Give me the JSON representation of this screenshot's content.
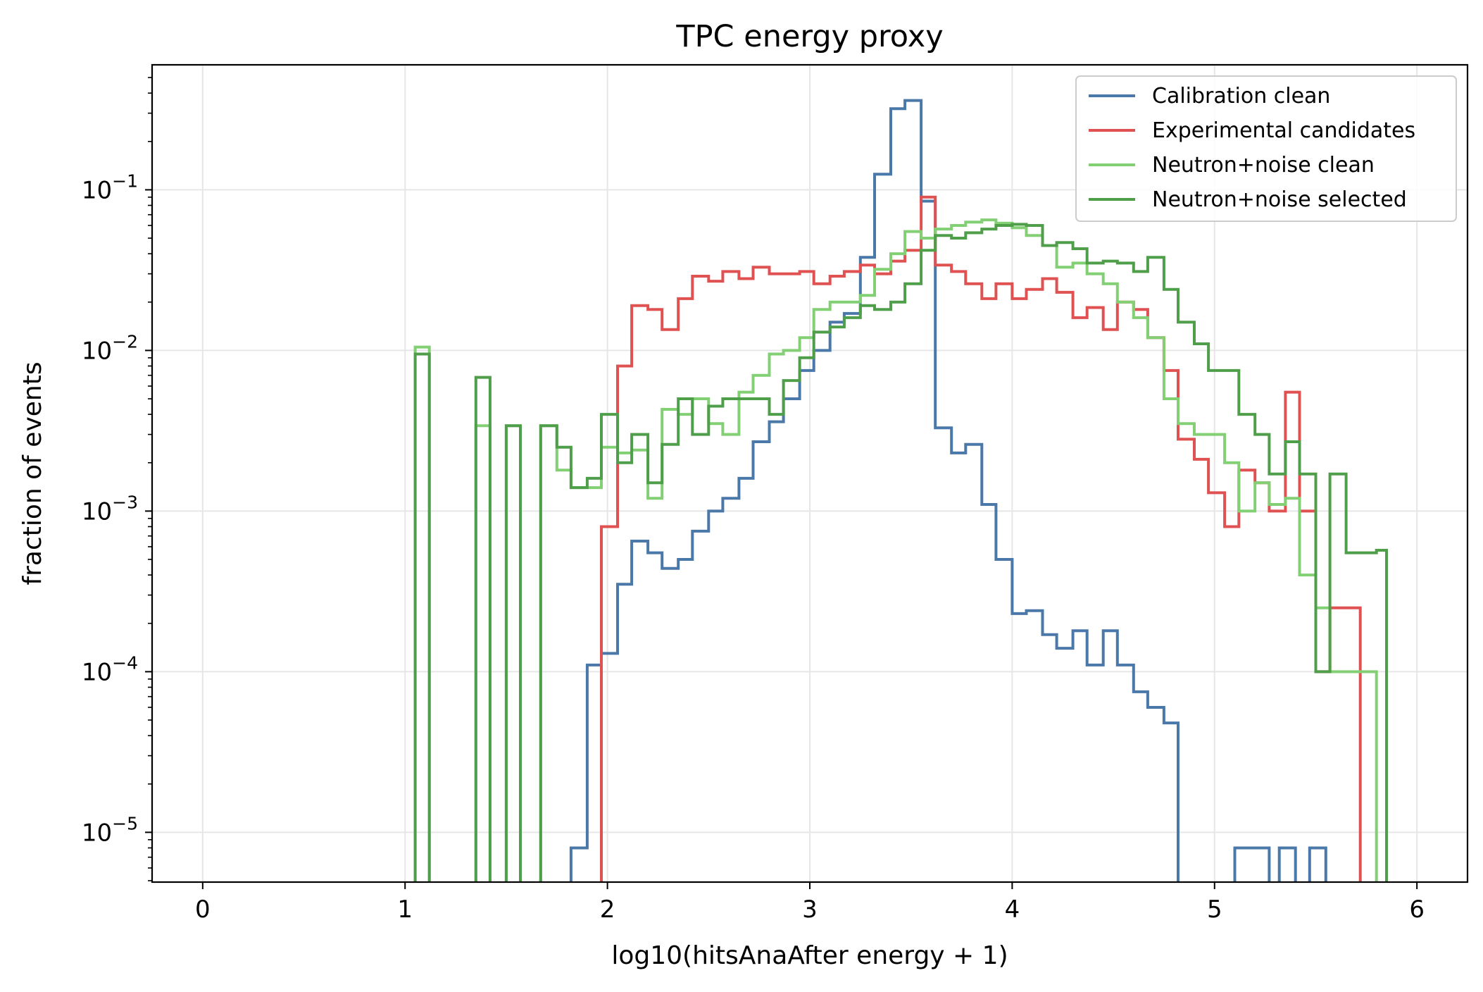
{
  "chart_data": {
    "type": "histogram-step",
    "title": "TPC energy proxy",
    "xlabel": "log10(hitsAnaAfter energy + 1)",
    "ylabel": "fraction of events",
    "x_scale": "linear",
    "y_scale": "log",
    "xlim": [
      -0.25,
      6.25
    ],
    "ylim": [
      4.9e-06,
      0.6
    ],
    "x_ticks": [
      0,
      1,
      2,
      3,
      4,
      5,
      6
    ],
    "y_ticks": [
      1e-05,
      0.0001,
      0.001,
      0.01,
      0.1
    ],
    "grid": true,
    "legend_position": "top-right",
    "bin_edges": [
      1.05,
      1.35,
      1.85,
      1.95,
      2.05,
      2.15,
      2.25,
      2.35,
      2.45,
      2.55,
      2.65,
      2.75,
      2.85,
      2.95,
      3.05,
      3.15,
      3.25,
      3.35,
      3.45,
      3.55,
      3.65,
      3.75,
      3.85,
      3.95,
      4.05,
      4.15,
      4.25,
      4.35,
      4.45,
      4.55,
      4.65,
      4.75,
      4.85,
      4.95,
      5.05,
      5.15,
      5.25,
      5.35,
      5.45,
      5.55,
      5.65,
      5.75,
      5.85
    ],
    "series": [
      {
        "name": "Calibration clean",
        "color": "#4a78a8",
        "points": [
          [
            1.82,
            8e-06
          ],
          [
            1.9,
            0.00011
          ],
          [
            1.97,
            0.00013
          ],
          [
            2.05,
            0.00035
          ],
          [
            2.12,
            0.00065
          ],
          [
            2.2,
            0.00055
          ],
          [
            2.27,
            0.00044
          ],
          [
            2.35,
            0.0005
          ],
          [
            2.42,
            0.00075
          ],
          [
            2.5,
            0.001
          ],
          [
            2.57,
            0.0012
          ],
          [
            2.65,
            0.0016
          ],
          [
            2.72,
            0.0027
          ],
          [
            2.8,
            0.0036
          ],
          [
            2.87,
            0.005
          ],
          [
            2.95,
            0.0075
          ],
          [
            3.02,
            0.01
          ],
          [
            3.1,
            0.015
          ],
          [
            3.17,
            0.017
          ],
          [
            3.25,
            0.038
          ],
          [
            3.32,
            0.125
          ],
          [
            3.4,
            0.32
          ],
          [
            3.47,
            0.36
          ],
          [
            3.55,
            0.085
          ],
          [
            3.62,
            0.0033
          ],
          [
            3.7,
            0.0023
          ],
          [
            3.77,
            0.0026
          ],
          [
            3.85,
            0.0011
          ],
          [
            3.92,
            0.0005
          ],
          [
            4.0,
            0.00023
          ],
          [
            4.07,
            0.00024
          ],
          [
            4.15,
            0.00017
          ],
          [
            4.22,
            0.00014
          ],
          [
            4.3,
            0.00018
          ],
          [
            4.37,
            0.00011
          ],
          [
            4.45,
            0.00018
          ],
          [
            4.52,
            0.00011
          ],
          [
            4.6,
            7.5e-05
          ],
          [
            4.67,
            6e-05
          ],
          [
            4.75,
            4.8e-05
          ],
          [
            4.82,
            0
          ],
          [
            5.1,
            8e-06
          ],
          [
            5.27,
            0
          ],
          [
            5.32,
            8e-06
          ],
          [
            5.4,
            0
          ],
          [
            5.47,
            8e-06
          ],
          [
            5.55,
            0
          ]
        ]
      },
      {
        "name": "Experimental candidates",
        "color": "#e05252",
        "points": [
          [
            1.97,
            0.0008
          ],
          [
            2.05,
            0.008
          ],
          [
            2.12,
            0.019
          ],
          [
            2.2,
            0.018
          ],
          [
            2.27,
            0.0135
          ],
          [
            2.35,
            0.021
          ],
          [
            2.42,
            0.029
          ],
          [
            2.5,
            0.027
          ],
          [
            2.57,
            0.031
          ],
          [
            2.65,
            0.028
          ],
          [
            2.72,
            0.033
          ],
          [
            2.8,
            0.03
          ],
          [
            2.87,
            0.03
          ],
          [
            2.95,
            0.031
          ],
          [
            3.02,
            0.026
          ],
          [
            3.1,
            0.029
          ],
          [
            3.17,
            0.031
          ],
          [
            3.25,
            0.034
          ],
          [
            3.32,
            0.03
          ],
          [
            3.4,
            0.036
          ],
          [
            3.47,
            0.042
          ],
          [
            3.55,
            0.09
          ],
          [
            3.62,
            0.034
          ],
          [
            3.7,
            0.031
          ],
          [
            3.77,
            0.026
          ],
          [
            3.85,
            0.021
          ],
          [
            3.92,
            0.026
          ],
          [
            4.0,
            0.021
          ],
          [
            4.07,
            0.024
          ],
          [
            4.15,
            0.028
          ],
          [
            4.22,
            0.023
          ],
          [
            4.3,
            0.016
          ],
          [
            4.37,
            0.0185
          ],
          [
            4.45,
            0.0135
          ],
          [
            4.52,
            0.02
          ],
          [
            4.6,
            0.018
          ],
          [
            4.67,
            0.012
          ],
          [
            4.75,
            0.0075
          ],
          [
            4.82,
            0.0028
          ],
          [
            4.9,
            0.0021
          ],
          [
            4.97,
            0.0013
          ],
          [
            5.05,
            0.0008
          ],
          [
            5.12,
            0.0018
          ],
          [
            5.2,
            0.0015
          ],
          [
            5.27,
            0.001
          ],
          [
            5.35,
            0.0055
          ],
          [
            5.42,
            0.001
          ],
          [
            5.5,
            0.0001
          ],
          [
            5.57,
            0.00025
          ],
          [
            5.65,
            0.00025
          ],
          [
            5.72,
            0
          ]
        ]
      },
      {
        "name": "Neutron+noise clean",
        "color": "#82cf74",
        "points": [
          [
            1.05,
            0.0105
          ],
          [
            1.12,
            0
          ],
          [
            1.35,
            0.0034
          ],
          [
            1.42,
            0
          ],
          [
            1.5,
            0.0034
          ],
          [
            1.57,
            0
          ],
          [
            1.67,
            0.0034
          ],
          [
            1.75,
            0.0018
          ],
          [
            1.82,
            0.0014
          ],
          [
            1.9,
            0.0014
          ],
          [
            1.97,
            0.0025
          ],
          [
            2.05,
            0.0023
          ],
          [
            2.12,
            0.0024
          ],
          [
            2.2,
            0.0012
          ],
          [
            2.27,
            0.0043
          ],
          [
            2.35,
            0.004
          ],
          [
            2.42,
            0.005
          ],
          [
            2.5,
            0.0035
          ],
          [
            2.57,
            0.003
          ],
          [
            2.65,
            0.0055
          ],
          [
            2.72,
            0.007
          ],
          [
            2.8,
            0.0095
          ],
          [
            2.87,
            0.01
          ],
          [
            2.95,
            0.012
          ],
          [
            3.02,
            0.018
          ],
          [
            3.1,
            0.02
          ],
          [
            3.17,
            0.02
          ],
          [
            3.25,
            0.022
          ],
          [
            3.32,
            0.032
          ],
          [
            3.4,
            0.04
          ],
          [
            3.47,
            0.055
          ],
          [
            3.55,
            0.05
          ],
          [
            3.62,
            0.057
          ],
          [
            3.7,
            0.06
          ],
          [
            3.77,
            0.063
          ],
          [
            3.85,
            0.065
          ],
          [
            3.92,
            0.062
          ],
          [
            4.0,
            0.058
          ],
          [
            4.07,
            0.052
          ],
          [
            4.15,
            0.045
          ],
          [
            4.22,
            0.033
          ],
          [
            4.3,
            0.035
          ],
          [
            4.37,
            0.03
          ],
          [
            4.45,
            0.026
          ],
          [
            4.52,
            0.02
          ],
          [
            4.6,
            0.016
          ],
          [
            4.67,
            0.012
          ],
          [
            4.75,
            0.005
          ],
          [
            4.82,
            0.0035
          ],
          [
            4.9,
            0.003
          ],
          [
            4.97,
            0.003
          ],
          [
            5.05,
            0.002
          ],
          [
            5.12,
            0.001
          ],
          [
            5.2,
            0.0015
          ],
          [
            5.27,
            0.0011
          ],
          [
            5.35,
            0.0012
          ],
          [
            5.42,
            0.0004
          ],
          [
            5.5,
            0.00025
          ],
          [
            5.57,
            0.0001
          ],
          [
            5.65,
            0.0001
          ],
          [
            5.72,
            0.0001
          ],
          [
            5.8,
            0
          ]
        ]
      },
      {
        "name": "Neutron+noise selected",
        "color": "#4f9e4a",
        "points": [
          [
            1.05,
            0.0095
          ],
          [
            1.12,
            0
          ],
          [
            1.35,
            0.0068
          ],
          [
            1.42,
            0
          ],
          [
            1.5,
            0.0034
          ],
          [
            1.57,
            0
          ],
          [
            1.67,
            0.0034
          ],
          [
            1.75,
            0.0025
          ],
          [
            1.82,
            0.0014
          ],
          [
            1.9,
            0.0016
          ],
          [
            1.97,
            0.004
          ],
          [
            2.05,
            0.002
          ],
          [
            2.12,
            0.003
          ],
          [
            2.2,
            0.0015
          ],
          [
            2.27,
            0.0026
          ],
          [
            2.35,
            0.005
          ],
          [
            2.42,
            0.003
          ],
          [
            2.5,
            0.0045
          ],
          [
            2.57,
            0.005
          ],
          [
            2.65,
            0.005
          ],
          [
            2.72,
            0.005
          ],
          [
            2.8,
            0.004
          ],
          [
            2.87,
            0.0065
          ],
          [
            2.95,
            0.009
          ],
          [
            3.02,
            0.013
          ],
          [
            3.1,
            0.014
          ],
          [
            3.17,
            0.016
          ],
          [
            3.25,
            0.019
          ],
          [
            3.32,
            0.018
          ],
          [
            3.4,
            0.02
          ],
          [
            3.47,
            0.026
          ],
          [
            3.55,
            0.042
          ],
          [
            3.62,
            0.052
          ],
          [
            3.7,
            0.05
          ],
          [
            3.77,
            0.054
          ],
          [
            3.85,
            0.057
          ],
          [
            3.92,
            0.06
          ],
          [
            4.0,
            0.061
          ],
          [
            4.07,
            0.06
          ],
          [
            4.15,
            0.045
          ],
          [
            4.22,
            0.047
          ],
          [
            4.3,
            0.043
          ],
          [
            4.37,
            0.035
          ],
          [
            4.45,
            0.036
          ],
          [
            4.52,
            0.035
          ],
          [
            4.6,
            0.031
          ],
          [
            4.67,
            0.038
          ],
          [
            4.75,
            0.024
          ],
          [
            4.82,
            0.015
          ],
          [
            4.9,
            0.011
          ],
          [
            4.97,
            0.0075
          ],
          [
            5.05,
            0.0075
          ],
          [
            5.12,
            0.004
          ],
          [
            5.2,
            0.003
          ],
          [
            5.27,
            0.0017
          ],
          [
            5.35,
            0.0027
          ],
          [
            5.42,
            0.0017
          ],
          [
            5.5,
            0.0001
          ],
          [
            5.57,
            0.0017
          ],
          [
            5.65,
            0.00055
          ],
          [
            5.72,
            0.00055
          ],
          [
            5.8,
            0.00057
          ],
          [
            5.85,
            0
          ]
        ]
      }
    ]
  }
}
